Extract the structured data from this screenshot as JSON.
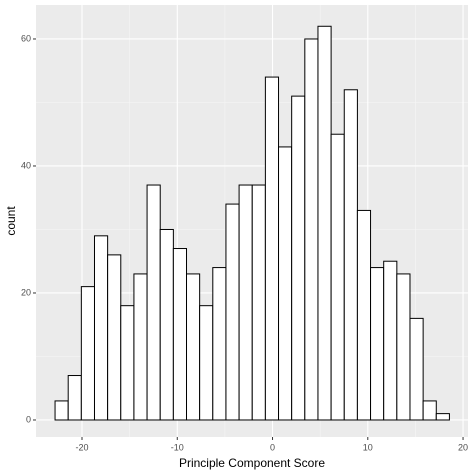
{
  "chart_data": {
    "type": "histogram",
    "x_label": "Principle Component Score",
    "y_label": "count",
    "bins": [
      -22.83,
      -21.45,
      -20.07,
      -18.69,
      -17.31,
      -15.93,
      -14.55,
      -13.17,
      -11.79,
      -10.41,
      -9.03,
      -7.65,
      -6.27,
      -4.89,
      -3.51,
      -2.13,
      -0.75,
      0.63,
      2.01,
      3.39,
      4.77,
      6.15,
      7.53,
      8.91,
      10.29,
      11.67,
      13.05,
      14.43,
      15.81,
      17.19,
      18.57
    ],
    "values": [
      3,
      7,
      21,
      29,
      26,
      18,
      23,
      37,
      30,
      27,
      23,
      18,
      24,
      34,
      37,
      37,
      54,
      43,
      51,
      60,
      62,
      45,
      52,
      33,
      24,
      25,
      23,
      16,
      3,
      1
    ],
    "color": "#ffffff",
    "edge_color": "#000000",
    "xlim": [
      -24.83,
      20.52
    ],
    "ylim": [
      -2.68,
      65.35
    ],
    "xticks": [
      -20,
      -10,
      0,
      10,
      20
    ],
    "yticks": [
      0,
      20,
      40,
      60
    ],
    "grid": true
  }
}
